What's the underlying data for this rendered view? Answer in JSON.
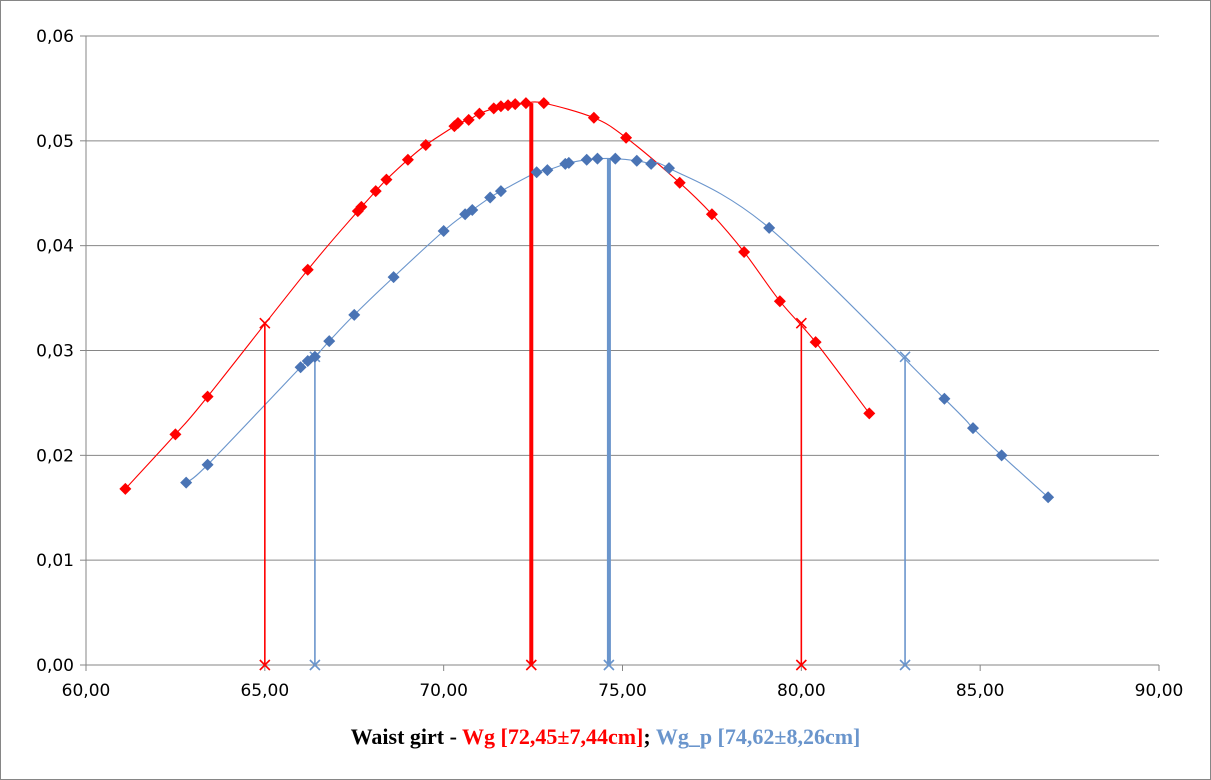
{
  "chart_data": {
    "type": "scatter",
    "xlim": [
      60,
      90
    ],
    "ylim": [
      0,
      0.06
    ],
    "x_ticks": [
      "60,00",
      "65,00",
      "70,00",
      "75,00",
      "80,00",
      "85,00",
      "90,00"
    ],
    "y_ticks": [
      "0,00",
      "0,01",
      "0,02",
      "0,03",
      "0,04",
      "0,05",
      "0,06"
    ],
    "grid": "horizontal",
    "xlabel_parts": {
      "prefix": "Waist girt - ",
      "wg": "Wg [72,45±7,44cm]",
      "sep": "; ",
      "wgp": "Wg_p [74,62±8,26cm]"
    },
    "series": [
      {
        "name": "Wg",
        "color": "#ff0000",
        "marker": "diamond",
        "mean": 72.45,
        "sd": 7.44,
        "points": [
          [
            61.1,
            0.0168
          ],
          [
            62.5,
            0.022
          ],
          [
            63.4,
            0.0256
          ],
          [
            66.2,
            0.0377
          ],
          [
            67.6,
            0.0433
          ],
          [
            67.7,
            0.0437
          ],
          [
            68.1,
            0.0452
          ],
          [
            68.4,
            0.0463
          ],
          [
            69.0,
            0.0482
          ],
          [
            69.5,
            0.0496
          ],
          [
            70.3,
            0.0514
          ],
          [
            70.4,
            0.0517
          ],
          [
            70.7,
            0.052
          ],
          [
            71.0,
            0.0526
          ],
          [
            71.4,
            0.0531
          ],
          [
            71.6,
            0.0533
          ],
          [
            71.8,
            0.0534
          ],
          [
            72.0,
            0.0535
          ],
          [
            72.3,
            0.0536
          ],
          [
            72.8,
            0.0536
          ],
          [
            74.2,
            0.0522
          ],
          [
            75.1,
            0.0503
          ],
          [
            76.6,
            0.046
          ],
          [
            77.5,
            0.043
          ],
          [
            78.4,
            0.0394
          ],
          [
            79.4,
            0.0347
          ],
          [
            80.4,
            0.0308
          ],
          [
            81.9,
            0.024
          ]
        ],
        "lines": [
          {
            "x": 65.0,
            "top": 0.0326,
            "kind": "sd"
          },
          {
            "x": 72.45,
            "top": 0.0536,
            "kind": "mean"
          },
          {
            "x": 80.0,
            "top": 0.0326,
            "kind": "sd"
          }
        ]
      },
      {
        "name": "Wg_p",
        "color": "#4a74b5",
        "line_color": "#6a95cc",
        "marker": "diamond",
        "mean": 74.62,
        "sd": 8.26,
        "points": [
          [
            62.8,
            0.0174
          ],
          [
            63.4,
            0.0191
          ],
          [
            66.0,
            0.0284
          ],
          [
            66.2,
            0.029
          ],
          [
            66.4,
            0.0294
          ],
          [
            66.8,
            0.0309
          ],
          [
            67.5,
            0.0334
          ],
          [
            68.6,
            0.037
          ],
          [
            70.0,
            0.0414
          ],
          [
            70.6,
            0.043
          ],
          [
            70.8,
            0.0434
          ],
          [
            71.3,
            0.0446
          ],
          [
            71.6,
            0.0452
          ],
          [
            72.6,
            0.047
          ],
          [
            72.9,
            0.0472
          ],
          [
            73.4,
            0.0478
          ],
          [
            73.5,
            0.0479
          ],
          [
            74.0,
            0.0482
          ],
          [
            74.3,
            0.0483
          ],
          [
            74.8,
            0.0483
          ],
          [
            75.4,
            0.0481
          ],
          [
            75.8,
            0.0478
          ],
          [
            76.3,
            0.0474
          ],
          [
            79.1,
            0.0417
          ],
          [
            84.0,
            0.0254
          ],
          [
            84.8,
            0.0226
          ],
          [
            85.6,
            0.02
          ],
          [
            86.9,
            0.016
          ]
        ],
        "lines": [
          {
            "x": 66.4,
            "top": 0.0294,
            "kind": "sd"
          },
          {
            "x": 74.62,
            "top": 0.0483,
            "kind": "mean"
          },
          {
            "x": 82.9,
            "top": 0.0294,
            "kind": "sd"
          }
        ]
      }
    ]
  }
}
